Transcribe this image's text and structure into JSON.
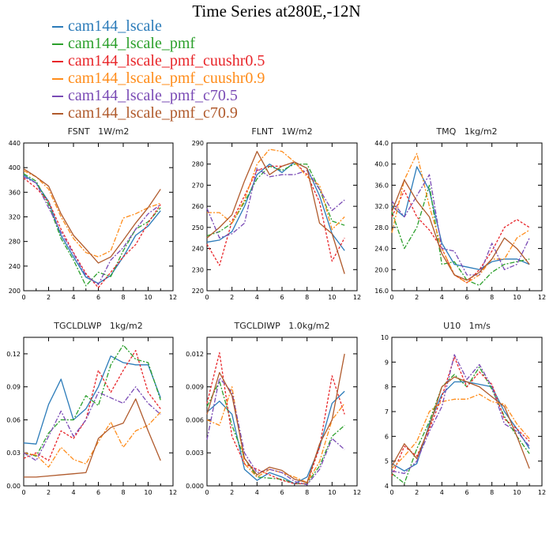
{
  "page": {
    "title": "Time Series at280E,-12N"
  },
  "legend": [
    {
      "name": "cam144_lscale",
      "color": "#2b7bb9"
    },
    {
      "name": "cam144_lscale_pmf",
      "color": "#2ca02c"
    },
    {
      "name": "cam144_lscale_pmf_cuushr0.5",
      "color": "#e8262a"
    },
    {
      "name": "cam144_lscale_pmf_cuushr0.9",
      "color": "#ff8c1a"
    },
    {
      "name": "cam144_lscale_pmf_c70.5",
      "color": "#7a4bb5"
    },
    {
      "name": "cam144_lscale_pmf_c70.9",
      "color": "#b05a2c"
    }
  ],
  "chart_data": [
    {
      "type": "line",
      "title": "FSNT   1W/m2",
      "xlim": [
        0,
        12
      ],
      "xticks": [
        0,
        2,
        4,
        6,
        8,
        10,
        12
      ],
      "ylim": [
        200,
        440
      ],
      "yticks": [
        200,
        240,
        280,
        320,
        360,
        400,
        440
      ],
      "yticklabels": [
        "200",
        "240",
        "280",
        "320",
        "360",
        "400",
        "440"
      ],
      "x": [
        0,
        1,
        2,
        3,
        4,
        5,
        6,
        7,
        8,
        9,
        10,
        11
      ],
      "series": [
        {
          "name": "cam144_lscale",
          "values": [
            388,
            375,
            345,
            290,
            255,
            222,
            212,
            225,
            255,
            290,
            305,
            330
          ]
        },
        {
          "name": "cam144_lscale_pmf",
          "values": [
            390,
            378,
            340,
            285,
            250,
            208,
            230,
            223,
            265,
            300,
            312,
            335
          ]
        },
        {
          "name": "cam144_lscale_pmf_cuushr0.5",
          "values": [
            383,
            367,
            345,
            300,
            262,
            228,
            205,
            230,
            255,
            275,
            310,
            340
          ]
        },
        {
          "name": "cam144_lscale_pmf_cuushr0.9",
          "values": [
            395,
            385,
            365,
            320,
            285,
            262,
            255,
            265,
            318,
            325,
            335,
            342
          ]
        },
        {
          "name": "cam144_lscale_pmf_c70.5",
          "values": [
            385,
            375,
            335,
            295,
            260,
            225,
            210,
            250,
            270,
            300,
            325,
            340
          ]
        },
        {
          "name": "cam144_lscale_pmf_c70.9",
          "values": [
            398,
            385,
            370,
            325,
            290,
            268,
            245,
            255,
            282,
            310,
            335,
            365
          ]
        }
      ]
    },
    {
      "type": "line",
      "title": "FLNT   1W/m2",
      "xlim": [
        0,
        12
      ],
      "xticks": [
        0,
        2,
        4,
        6,
        8,
        10,
        12
      ],
      "ylim": [
        220,
        290
      ],
      "yticks": [
        220,
        230,
        240,
        250,
        260,
        270,
        280,
        290
      ],
      "yticklabels": [
        "220",
        "230",
        "240",
        "250",
        "260",
        "270",
        "280",
        "290"
      ],
      "x": [
        0,
        1,
        2,
        3,
        4,
        5,
        6,
        7,
        8,
        9,
        10,
        11
      ],
      "series": [
        {
          "name": "cam144_lscale",
          "values": [
            243,
            244,
            248,
            260,
            275,
            280,
            276,
            281,
            278,
            265,
            247,
            239
          ]
        },
        {
          "name": "cam144_lscale_pmf",
          "values": [
            246,
            248,
            252,
            262,
            273,
            279,
            277,
            280,
            280,
            268,
            253,
            251
          ]
        },
        {
          "name": "cam144_lscale_pmf_cuushr0.5",
          "values": [
            242,
            232,
            253,
            265,
            277,
            279,
            279,
            281,
            275,
            262,
            234,
            245
          ]
        },
        {
          "name": "cam144_lscale_pmf_cuushr0.9",
          "values": [
            257,
            257,
            252,
            263,
            280,
            287,
            286,
            281,
            274,
            270,
            249,
            255
          ]
        },
        {
          "name": "cam144_lscale_pmf_c70.5",
          "values": [
            259,
            245,
            247,
            252,
            278,
            274,
            275,
            275,
            277,
            268,
            258,
            263
          ]
        },
        {
          "name": "cam144_lscale_pmf_c70.9",
          "values": [
            245,
            250,
            256,
            272,
            286,
            275,
            279,
            281,
            278,
            252,
            247,
            228
          ]
        }
      ]
    },
    {
      "type": "line",
      "title": "TMQ   1kg/m2",
      "xlim": [
        0,
        12
      ],
      "xticks": [
        0,
        2,
        4,
        6,
        8,
        10,
        12
      ],
      "ylim": [
        16,
        44
      ],
      "yticks": [
        16,
        20,
        24,
        28,
        32,
        36,
        40,
        44
      ],
      "yticklabels": [
        "16.0",
        "20.0",
        "24.0",
        "28.0",
        "32.0",
        "36.0",
        "40.0",
        "44.0"
      ],
      "x": [
        0,
        1,
        2,
        3,
        4,
        5,
        6,
        7,
        8,
        9,
        10,
        11
      ],
      "series": [
        {
          "name": "cam144_lscale",
          "values": [
            32,
            30,
            39.5,
            35,
            25,
            21,
            20.5,
            20,
            21.5,
            22,
            22,
            21
          ]
        },
        {
          "name": "cam144_lscale_pmf",
          "values": [
            31,
            24,
            28,
            36,
            21,
            21.5,
            18,
            17,
            19.5,
            21,
            21.5,
            22
          ]
        },
        {
          "name": "cam144_lscale_pmf_cuushr0.5",
          "values": [
            30,
            35,
            30,
            27.5,
            24,
            19,
            17.5,
            20,
            23.5,
            28,
            29.5,
            28
          ]
        },
        {
          "name": "cam144_lscale_pmf_cuushr0.9",
          "values": [
            27,
            37,
            42,
            32,
            24,
            19,
            17.5,
            19,
            22,
            22,
            26,
            27.5
          ]
        },
        {
          "name": "cam144_lscale_pmf_c70.5",
          "values": [
            33,
            30,
            34,
            38,
            24,
            23.5,
            19,
            19,
            25,
            20,
            21,
            26
          ]
        },
        {
          "name": "cam144_lscale_pmf_c70.9",
          "values": [
            31,
            37,
            33,
            30,
            23,
            19,
            18,
            19.5,
            22,
            26,
            24,
            21
          ]
        }
      ]
    },
    {
      "type": "line",
      "title": "TGCLDLWP   1kg/m2",
      "xlim": [
        0,
        12
      ],
      "xticks": [
        0,
        2,
        4,
        6,
        8,
        10,
        12
      ],
      "ylim": [
        0,
        0.135
      ],
      "yticks": [
        0,
        0.03,
        0.06,
        0.09,
        0.12
      ],
      "yticklabels": [
        "0.00",
        "0.03",
        "0.06",
        "0.09",
        "0.12"
      ],
      "x": [
        0,
        1,
        2,
        3,
        4,
        5,
        6,
        7,
        8,
        9,
        10,
        11
      ],
      "series": [
        {
          "name": "cam144_lscale",
          "values": [
            0.039,
            0.038,
            0.074,
            0.097,
            0.06,
            0.07,
            0.09,
            0.118,
            0.112,
            0.11,
            0.11,
            0.08
          ]
        },
        {
          "name": "cam144_lscale_pmf",
          "values": [
            0.03,
            0.027,
            0.048,
            0.06,
            0.06,
            0.082,
            0.073,
            0.11,
            0.128,
            0.115,
            0.112,
            0.078
          ]
        },
        {
          "name": "cam144_lscale_pmf_cuushr0.5",
          "values": [
            0.025,
            0.03,
            0.023,
            0.05,
            0.043,
            0.06,
            0.105,
            0.085,
            0.105,
            0.123,
            0.085,
            0.07
          ]
        },
        {
          "name": "cam144_lscale_pmf_cuushr0.9",
          "values": [
            0.03,
            0.028,
            0.017,
            0.035,
            0.024,
            0.02,
            0.04,
            0.058,
            0.035,
            0.05,
            0.055,
            0.067
          ]
        },
        {
          "name": "cam144_lscale_pmf_c70.5",
          "values": [
            0.03,
            0.023,
            0.045,
            0.068,
            0.045,
            0.06,
            0.085,
            0.08,
            0.075,
            0.09,
            0.075,
            0.065
          ]
        },
        {
          "name": "cam144_lscale_pmf_c70.9",
          "values": [
            0.008,
            0.008,
            0.009,
            0.01,
            0.011,
            0.012,
            0.043,
            0.053,
            0.057,
            0.079,
            0.05,
            0.023
          ]
        }
      ]
    },
    {
      "type": "line",
      "title": "TGCLDIWP   1.0kg/m2",
      "xlim": [
        0,
        12
      ],
      "xticks": [
        0,
        2,
        4,
        6,
        8,
        10,
        12
      ],
      "ylim": [
        0,
        0.0135
      ],
      "yticks": [
        0,
        0.003,
        0.006,
        0.009,
        0.012
      ],
      "yticklabels": [
        "0.000",
        "0.003",
        "0.006",
        "0.009",
        "0.012"
      ],
      "x": [
        0,
        1,
        2,
        3,
        4,
        5,
        6,
        7,
        8,
        9,
        10,
        11
      ],
      "series": [
        {
          "name": "cam144_lscale",
          "values": [
            0.0067,
            0.0077,
            0.0065,
            0.0015,
            0.0005,
            0.0012,
            0.0008,
            0.0002,
            0.0008,
            0.0035,
            0.0075,
            0.0086
          ]
        },
        {
          "name": "cam144_lscale_pmf",
          "values": [
            0.0072,
            0.0095,
            0.0055,
            0.0025,
            0.0008,
            0.0007,
            0.0006,
            0.0002,
            0.0002,
            0.0018,
            0.0045,
            0.0055
          ]
        },
        {
          "name": "cam144_lscale_pmf_cuushr0.5",
          "values": [
            0.0075,
            0.0121,
            0.0045,
            0.002,
            0.0015,
            0.001,
            0.0005,
            0.0002,
            0.0002,
            0.0035,
            0.01,
            0.0065
          ]
        },
        {
          "name": "cam144_lscale_pmf_cuushr0.9",
          "values": [
            0.006,
            0.0055,
            0.009,
            0.002,
            0.0008,
            0.0015,
            0.0012,
            0.0008,
            0.0003,
            0.0022,
            0.006,
            0.0075
          ]
        },
        {
          "name": "cam144_lscale_pmf_c70.5",
          "values": [
            0.0042,
            0.0098,
            0.0085,
            0.003,
            0.0012,
            0.0015,
            0.0012,
            0.0004,
            0.0001,
            0.0015,
            0.0043,
            0.0033
          ]
        },
        {
          "name": "cam144_lscale_pmf_c70.9",
          "values": [
            0.0065,
            0.0103,
            0.0082,
            0.0025,
            0.001,
            0.0017,
            0.0014,
            0.0006,
            0.0003,
            0.0038,
            0.006,
            0.012
          ]
        }
      ]
    },
    {
      "type": "line",
      "title": "U10   1m/s",
      "xlim": [
        0,
        12
      ],
      "xticks": [
        0,
        2,
        4,
        6,
        8,
        10,
        12
      ],
      "ylim": [
        4,
        10
      ],
      "yticks": [
        4,
        5,
        6,
        7,
        8,
        9,
        10
      ],
      "yticklabels": [
        "4",
        "5",
        "6",
        "7",
        "8",
        "9",
        "10"
      ],
      "x": [
        0,
        1,
        2,
        3,
        4,
        5,
        6,
        7,
        8,
        9,
        10,
        11
      ],
      "series": [
        {
          "name": "cam144_lscale",
          "values": [
            4.9,
            4.6,
            4.9,
            6.5,
            7.7,
            8.2,
            8.2,
            8.1,
            8.0,
            7.0,
            6.3,
            5.5
          ]
        },
        {
          "name": "cam144_lscale_pmf",
          "values": [
            4.5,
            4.1,
            5.5,
            6.6,
            8.0,
            8.5,
            8.0,
            8.8,
            7.9,
            6.8,
            6.0,
            5.3
          ]
        },
        {
          "name": "cam144_lscale_pmf_cuushr0.5",
          "values": [
            4.4,
            5.6,
            5.2,
            6.3,
            7.6,
            9.2,
            8.0,
            8.6,
            8.1,
            6.7,
            6.3,
            5.8
          ]
        },
        {
          "name": "cam144_lscale_pmf_cuushr0.9",
          "values": [
            4.7,
            5.2,
            5.8,
            7.0,
            7.4,
            7.5,
            7.5,
            7.7,
            7.4,
            7.3,
            6.5,
            5.9
          ]
        },
        {
          "name": "cam144_lscale_pmf_c70.5",
          "values": [
            4.6,
            4.5,
            5.0,
            6.2,
            7.2,
            9.3,
            8.3,
            8.9,
            8.0,
            6.5,
            6.2,
            5.6
          ]
        },
        {
          "name": "cam144_lscale_pmf_c70.9",
          "values": [
            4.8,
            5.7,
            5.1,
            6.4,
            8.0,
            8.4,
            8.2,
            8.0,
            7.6,
            7.2,
            6.0,
            4.7
          ]
        }
      ]
    }
  ]
}
